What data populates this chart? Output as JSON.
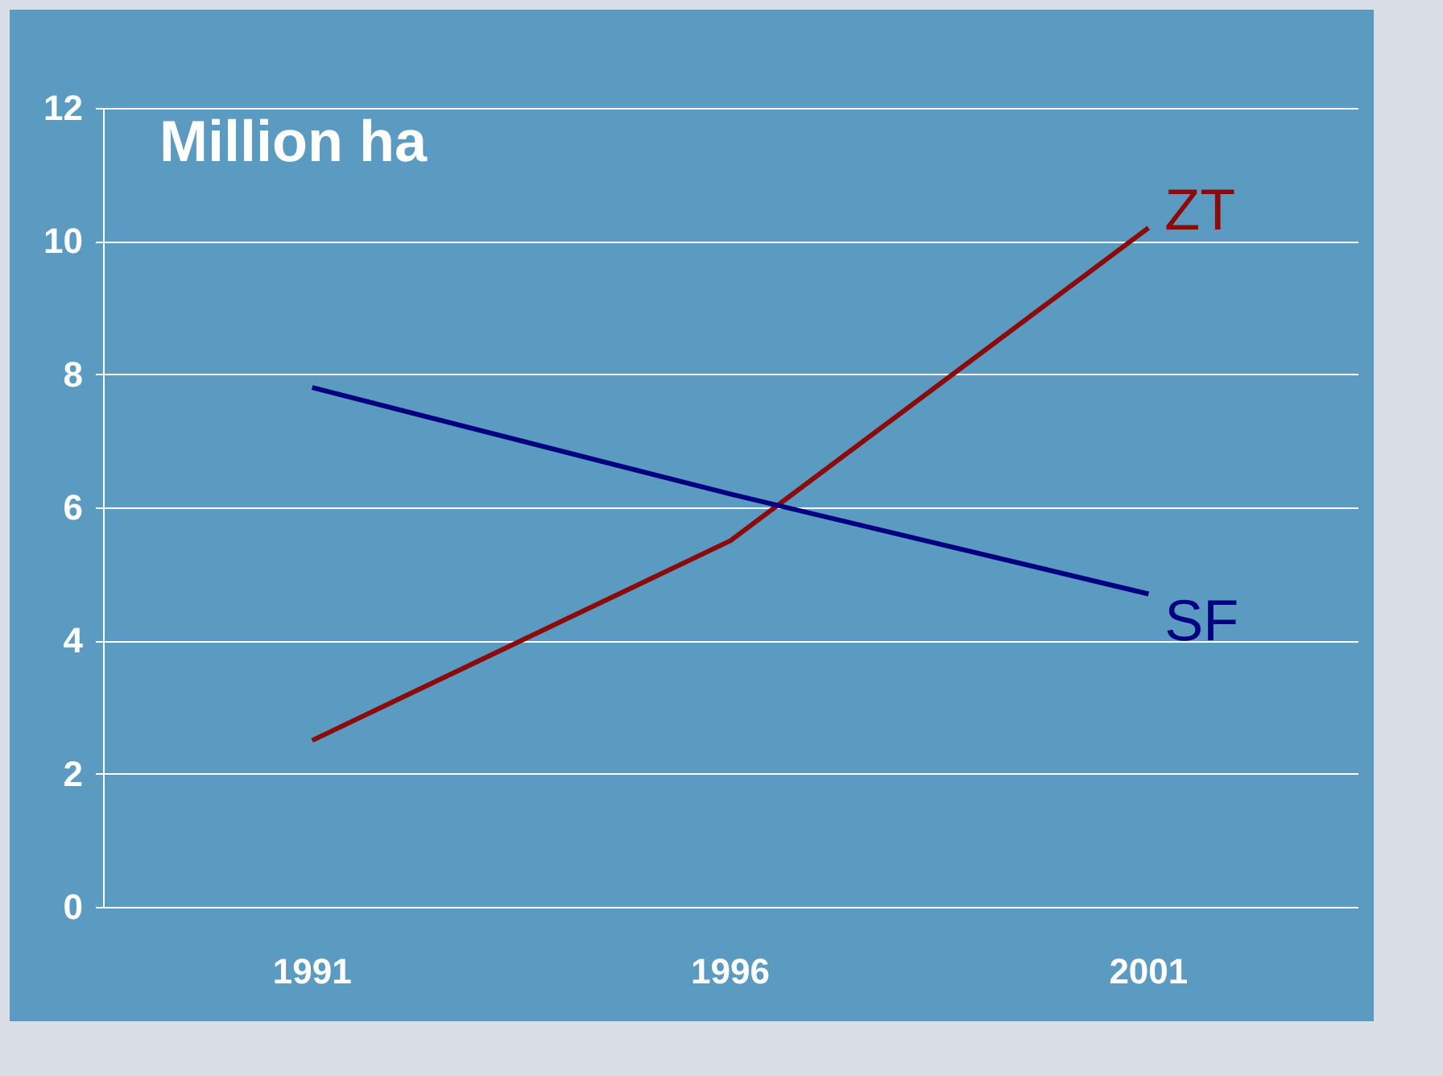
{
  "chart_data": {
    "type": "line",
    "categories": [
      "1991",
      "1996",
      "2001"
    ],
    "series": [
      {
        "name": "ZT",
        "color": "#8b0a0a",
        "values": [
          2.5,
          5.5,
          10.2
        ]
      },
      {
        "name": "SF",
        "color": "#000080",
        "values": [
          7.8,
          6.2,
          4.7
        ]
      }
    ],
    "ylim": [
      0,
      12
    ],
    "yticks": [
      0,
      2,
      4,
      6,
      8,
      10,
      12
    ],
    "grid": "y",
    "legend": false,
    "marker": "none",
    "line_style": "solid",
    "annotations": [
      "Million ha"
    ]
  }
}
